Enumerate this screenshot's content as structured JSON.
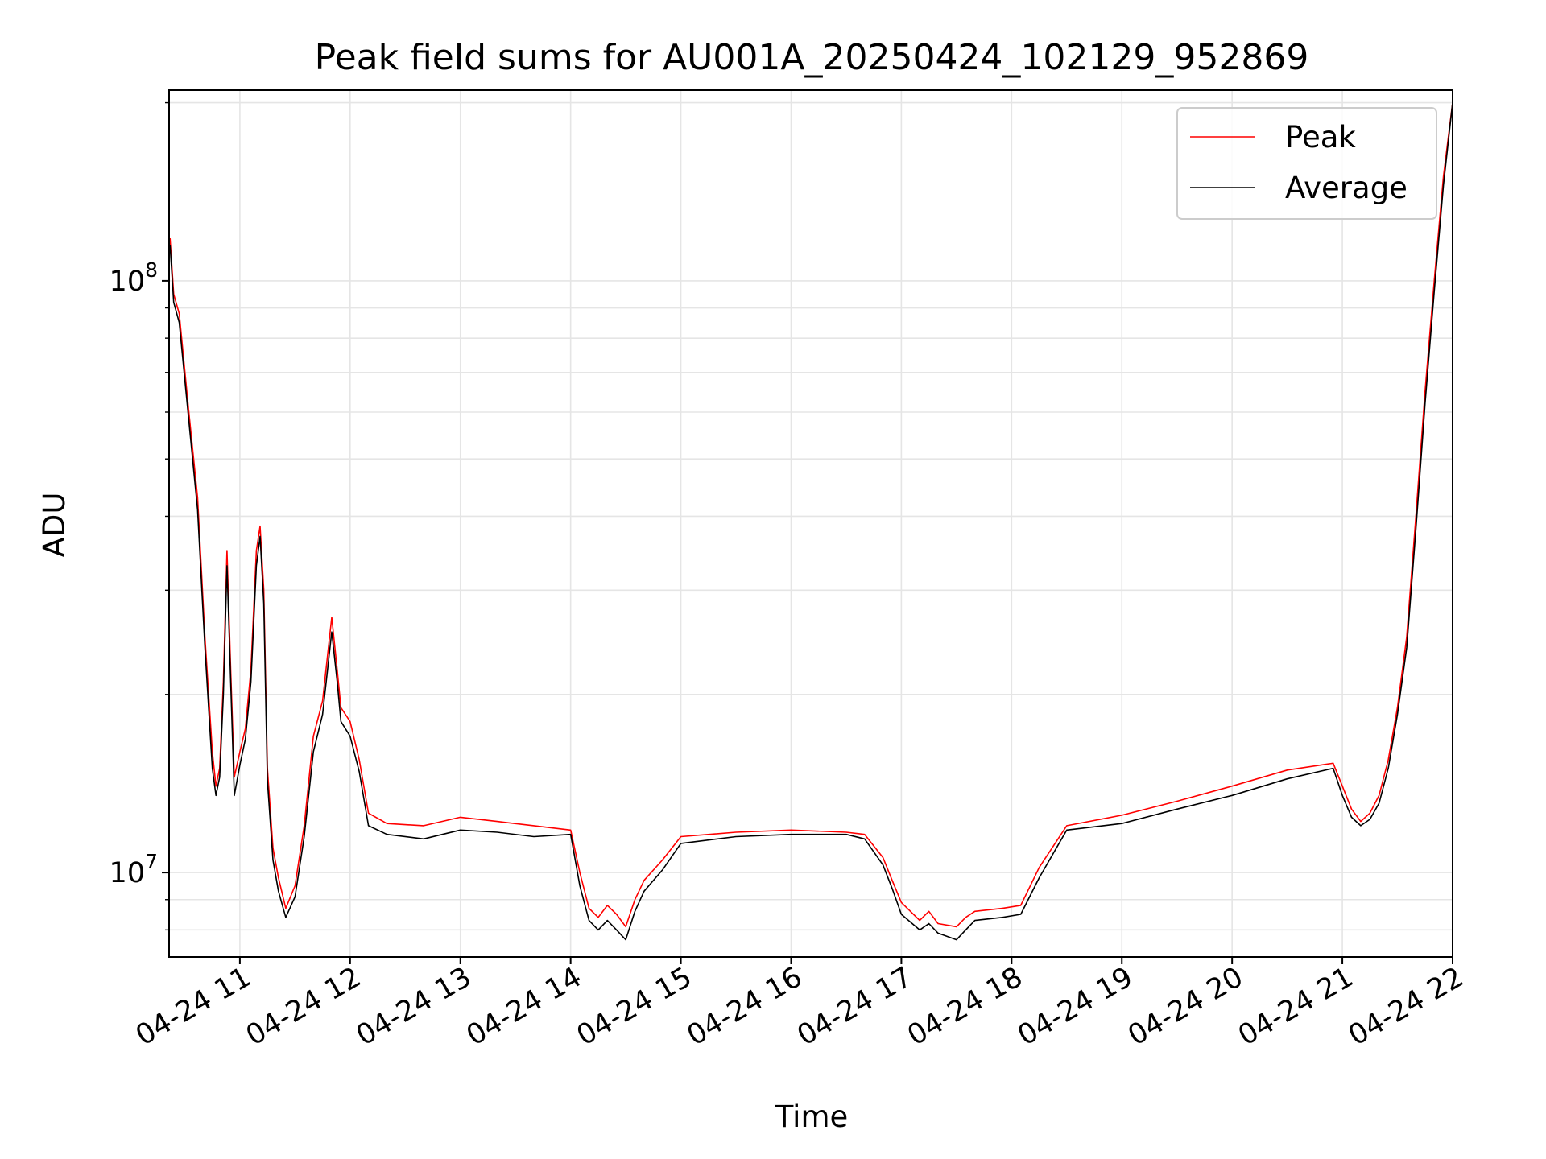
{
  "chart_data": {
    "type": "line",
    "title": "Peak field sums for AU001A_20250424_102129_952869",
    "xlabel": "Time",
    "ylabel": "ADU",
    "y_scale": "log",
    "ylim": [
      7200000,
      210000000
    ],
    "xlim": [
      "2025-04-24T10:21:29",
      "2025-04-24T22:00:00"
    ],
    "grid": true,
    "legend_position": "top-right",
    "x_ticks": [
      "04-24 11",
      "04-24 12",
      "04-24 13",
      "04-24 14",
      "04-24 15",
      "04-24 16",
      "04-24 17",
      "04-24 18",
      "04-24 19",
      "04-24 20",
      "04-24 21",
      "04-24 22"
    ],
    "x_tick_times": [
      "2025-04-24T11:00",
      "2025-04-24T12:00",
      "2025-04-24T13:00",
      "2025-04-24T14:00",
      "2025-04-24T15:00",
      "2025-04-24T16:00",
      "2025-04-24T17:00",
      "2025-04-24T18:00",
      "2025-04-24T19:00",
      "2025-04-24T20:00",
      "2025-04-24T21:00",
      "2025-04-24T22:00"
    ],
    "y_ticks": [
      {
        "value": 10000000,
        "base": "10",
        "exp": "7"
      },
      {
        "value": 100000000,
        "base": "10",
        "exp": "8"
      }
    ],
    "series": [
      {
        "name": "Peak",
        "color": "#ff0000",
        "x": [
          "2025-04-24T10:22",
          "2025-04-24T10:24",
          "2025-04-24T10:27",
          "2025-04-24T10:32",
          "2025-04-24T10:37",
          "2025-04-24T10:41",
          "2025-04-24T10:45",
          "2025-04-24T10:47",
          "2025-04-24T10:49",
          "2025-04-24T10:51",
          "2025-04-24T10:53",
          "2025-04-24T10:55",
          "2025-04-24T10:57",
          "2025-04-24T11:00",
          "2025-04-24T11:03",
          "2025-04-24T11:06",
          "2025-04-24T11:09",
          "2025-04-24T11:11",
          "2025-04-24T11:13",
          "2025-04-24T11:15",
          "2025-04-24T11:18",
          "2025-04-24T11:21",
          "2025-04-24T11:25",
          "2025-04-24T11:30",
          "2025-04-24T11:35",
          "2025-04-24T11:40",
          "2025-04-24T11:45",
          "2025-04-24T11:50",
          "2025-04-24T11:53",
          "2025-04-24T11:55",
          "2025-04-24T12:00",
          "2025-04-24T12:05",
          "2025-04-24T12:10",
          "2025-04-24T12:20",
          "2025-04-24T12:40",
          "2025-04-24T13:00",
          "2025-04-24T13:20",
          "2025-04-24T13:40",
          "2025-04-24T14:00",
          "2025-04-24T14:05",
          "2025-04-24T14:10",
          "2025-04-24T14:15",
          "2025-04-24T14:20",
          "2025-04-24T14:25",
          "2025-04-24T14:30",
          "2025-04-24T14:35",
          "2025-04-24T14:40",
          "2025-04-24T14:50",
          "2025-04-24T15:00",
          "2025-04-24T15:30",
          "2025-04-24T16:00",
          "2025-04-24T16:30",
          "2025-04-24T16:40",
          "2025-04-24T16:50",
          "2025-04-24T16:55",
          "2025-04-24T17:00",
          "2025-04-24T17:10",
          "2025-04-24T17:15",
          "2025-04-24T17:20",
          "2025-04-24T17:30",
          "2025-04-24T17:35",
          "2025-04-24T17:40",
          "2025-04-24T17:55",
          "2025-04-24T18:05",
          "2025-04-24T18:15",
          "2025-04-24T18:30",
          "2025-04-24T19:00",
          "2025-04-24T19:30",
          "2025-04-24T20:00",
          "2025-04-24T20:30",
          "2025-04-24T20:55",
          "2025-04-24T21:00",
          "2025-04-24T21:05",
          "2025-04-24T21:10",
          "2025-04-24T21:15",
          "2025-04-24T21:20",
          "2025-04-24T21:25",
          "2025-04-24T21:30",
          "2025-04-24T21:35",
          "2025-04-24T21:40",
          "2025-04-24T21:45",
          "2025-04-24T21:50",
          "2025-04-24T21:55",
          "2025-04-24T22:00"
        ],
        "y": [
          118000000,
          95000000,
          88000000,
          61000000,
          43000000,
          25000000,
          16000000,
          14000000,
          15000000,
          21000000,
          35000000,
          22000000,
          14500000,
          16000000,
          17500000,
          22000000,
          35000000,
          38500000,
          30000000,
          15000000,
          11000000,
          9800000,
          8700000,
          9500000,
          12000000,
          17000000,
          19500000,
          27000000,
          22000000,
          19000000,
          18000000,
          15500000,
          12600000,
          12100000,
          12000000,
          12400000,
          12200000,
          12000000,
          11800000,
          10000000,
          8700000,
          8400000,
          8800000,
          8500000,
          8100000,
          9000000,
          9700000,
          10500000,
          11500000,
          11700000,
          11800000,
          11700000,
          11600000,
          10600000,
          9700000,
          8900000,
          8300000,
          8600000,
          8200000,
          8100000,
          8400000,
          8600000,
          8700000,
          8800000,
          10200000,
          12000000,
          12500000,
          13200000,
          14000000,
          14900000,
          15300000,
          14000000,
          12800000,
          12200000,
          12600000,
          13500000,
          15500000,
          19000000,
          25000000,
          40000000,
          65000000,
          100000000,
          150000000,
          200000000
        ]
      },
      {
        "name": "Average",
        "color": "#000000",
        "x": [
          "2025-04-24T10:22",
          "2025-04-24T10:24",
          "2025-04-24T10:27",
          "2025-04-24T10:32",
          "2025-04-24T10:37",
          "2025-04-24T10:41",
          "2025-04-24T10:45",
          "2025-04-24T10:47",
          "2025-04-24T10:49",
          "2025-04-24T10:51",
          "2025-04-24T10:53",
          "2025-04-24T10:55",
          "2025-04-24T10:57",
          "2025-04-24T11:00",
          "2025-04-24T11:03",
          "2025-04-24T11:06",
          "2025-04-24T11:09",
          "2025-04-24T11:11",
          "2025-04-24T11:13",
          "2025-04-24T11:15",
          "2025-04-24T11:18",
          "2025-04-24T11:21",
          "2025-04-24T11:25",
          "2025-04-24T11:30",
          "2025-04-24T11:35",
          "2025-04-24T11:40",
          "2025-04-24T11:45",
          "2025-04-24T11:50",
          "2025-04-24T11:53",
          "2025-04-24T11:55",
          "2025-04-24T12:00",
          "2025-04-24T12:05",
          "2025-04-24T12:10",
          "2025-04-24T12:20",
          "2025-04-24T12:40",
          "2025-04-24T13:00",
          "2025-04-24T13:20",
          "2025-04-24T13:40",
          "2025-04-24T14:00",
          "2025-04-24T14:05",
          "2025-04-24T14:10",
          "2025-04-24T14:15",
          "2025-04-24T14:20",
          "2025-04-24T14:25",
          "2025-04-24T14:30",
          "2025-04-24T14:35",
          "2025-04-24T14:40",
          "2025-04-24T14:50",
          "2025-04-24T15:00",
          "2025-04-24T15:30",
          "2025-04-24T16:00",
          "2025-04-24T16:30",
          "2025-04-24T16:40",
          "2025-04-24T16:50",
          "2025-04-24T16:55",
          "2025-04-24T17:00",
          "2025-04-24T17:10",
          "2025-04-24T17:15",
          "2025-04-24T17:20",
          "2025-04-24T17:30",
          "2025-04-24T17:35",
          "2025-04-24T17:40",
          "2025-04-24T17:55",
          "2025-04-24T18:05",
          "2025-04-24T18:15",
          "2025-04-24T18:30",
          "2025-04-24T19:00",
          "2025-04-24T19:30",
          "2025-04-24T20:00",
          "2025-04-24T20:30",
          "2025-04-24T20:55",
          "2025-04-24T21:00",
          "2025-04-24T21:05",
          "2025-04-24T21:10",
          "2025-04-24T21:15",
          "2025-04-24T21:20",
          "2025-04-24T21:25",
          "2025-04-24T21:30",
          "2025-04-24T21:35",
          "2025-04-24T21:40",
          "2025-04-24T21:45",
          "2025-04-24T21:50",
          "2025-04-24T21:55",
          "2025-04-24T22:00"
        ],
        "y": [
          115000000,
          92000000,
          85000000,
          59000000,
          41000000,
          24000000,
          15000000,
          13500000,
          14500000,
          20000000,
          33000000,
          21000000,
          13500000,
          15200000,
          16800000,
          21000000,
          33000000,
          37000000,
          28500000,
          14300000,
          10500000,
          9300000,
          8400000,
          9100000,
          11500000,
          16000000,
          18500000,
          25500000,
          21000000,
          18000000,
          17000000,
          14800000,
          12000000,
          11600000,
          11400000,
          11800000,
          11700000,
          11500000,
          11600000,
          9500000,
          8300000,
          8000000,
          8300000,
          8000000,
          7700000,
          8600000,
          9300000,
          10100000,
          11200000,
          11500000,
          11600000,
          11600000,
          11400000,
          10300000,
          9400000,
          8500000,
          8000000,
          8200000,
          7900000,
          7700000,
          8000000,
          8300000,
          8400000,
          8500000,
          9800000,
          11800000,
          12100000,
          12800000,
          13500000,
          14400000,
          15000000,
          13500000,
          12400000,
          12000000,
          12300000,
          13100000,
          15000000,
          18500000,
          24000000,
          38000000,
          62000000,
          96000000,
          145000000,
          200000000
        ]
      }
    ]
  }
}
